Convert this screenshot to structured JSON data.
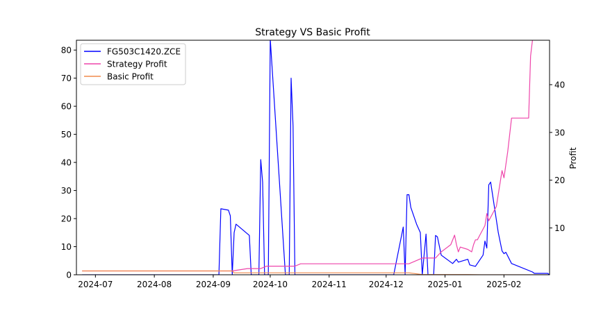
{
  "chart_data": {
    "type": "line",
    "title": "Strategy VS Basic Profit",
    "xlabel": "",
    "ylabel_left": "",
    "ylabel_right": "Profit",
    "x_tick_labels": [
      "2024-07",
      "2024-08",
      "2024-09",
      "2024-10",
      "2024-11",
      "2024-12",
      "2025-01",
      "2025-02"
    ],
    "x_tick_dates": [
      "2024-07-01",
      "2024-08-01",
      "2024-09-01",
      "2024-10-01",
      "2024-11-01",
      "2024-12-01",
      "2025-01-01",
      "2025-02-01"
    ],
    "x_range": [
      "2024-06-21",
      "2025-02-25"
    ],
    "y_left_ticks": [
      0,
      10,
      20,
      30,
      40,
      50,
      60,
      70,
      80
    ],
    "y_left_lim": [
      0,
      83.5
    ],
    "y_right_ticks": [
      10,
      20,
      30,
      40
    ],
    "y_right_lim": [
      0.2,
      49.3
    ],
    "grid": false,
    "legend_position": "top-left",
    "series": [
      {
        "name": "FG503C1420.ZCE",
        "axis": "left",
        "color": "#0000ff",
        "points": [
          [
            "2024-06-24",
            0
          ],
          [
            "2024-09-04",
            0
          ],
          [
            "2024-09-05",
            23.5
          ],
          [
            "2024-09-09",
            23
          ],
          [
            "2024-09-10",
            21
          ],
          [
            "2024-09-11",
            0
          ],
          [
            "2024-09-12",
            15
          ],
          [
            "2024-09-13",
            18
          ],
          [
            "2024-09-20",
            14
          ],
          [
            "2024-09-21",
            0
          ],
          [
            "2024-09-25",
            0
          ],
          [
            "2024-09-26",
            41
          ],
          [
            "2024-09-27",
            33
          ],
          [
            "2024-09-28",
            0
          ],
          [
            "2024-09-30",
            0
          ],
          [
            "2024-10-01",
            84
          ],
          [
            "2024-10-09",
            0
          ],
          [
            "2024-10-11",
            0
          ],
          [
            "2024-10-12",
            70
          ],
          [
            "2024-10-13",
            53
          ],
          [
            "2024-10-14",
            0
          ],
          [
            "2024-12-05",
            0
          ],
          [
            "2024-12-10",
            17
          ],
          [
            "2024-12-11",
            0
          ],
          [
            "2024-12-12",
            28.5
          ],
          [
            "2024-12-13",
            28.5
          ],
          [
            "2024-12-14",
            24
          ],
          [
            "2024-12-17",
            18
          ],
          [
            "2024-12-19",
            15
          ],
          [
            "2024-12-20",
            0
          ],
          [
            "2024-12-22",
            14.5
          ],
          [
            "2024-12-23",
            0
          ],
          [
            "2024-12-26",
            0
          ],
          [
            "2024-12-27",
            14
          ],
          [
            "2024-12-28",
            13.5
          ],
          [
            "2024-12-30",
            7
          ],
          [
            "2025-01-05",
            4
          ],
          [
            "2025-01-07",
            5.5
          ],
          [
            "2025-01-08",
            4.5
          ],
          [
            "2025-01-13",
            5.5
          ],
          [
            "2025-01-14",
            3.5
          ],
          [
            "2025-01-17",
            3
          ],
          [
            "2025-01-21",
            7
          ],
          [
            "2025-01-22",
            12
          ],
          [
            "2025-01-23",
            9.5
          ],
          [
            "2025-01-24",
            32
          ],
          [
            "2025-01-25",
            33
          ],
          [
            "2025-01-29",
            15
          ],
          [
            "2025-01-31",
            8.5
          ],
          [
            "2025-02-01",
            7.5
          ],
          [
            "2025-02-02",
            8
          ],
          [
            "2025-02-05",
            4
          ],
          [
            "2025-02-16",
            1
          ],
          [
            "2025-02-17",
            0.5
          ],
          [
            "2025-02-24",
            0.5
          ],
          [
            "2025-02-25",
            0
          ]
        ]
      },
      {
        "name": "Strategy Profit",
        "axis": "right",
        "color": "#ee44aa",
        "points": [
          [
            "2024-06-24",
            1
          ],
          [
            "2024-09-11",
            1
          ],
          [
            "2024-09-19",
            1.5
          ],
          [
            "2024-09-26",
            1.5
          ],
          [
            "2024-09-29",
            2
          ],
          [
            "2024-10-14",
            2
          ],
          [
            "2024-10-17",
            2.5
          ],
          [
            "2024-12-13",
            2.5
          ],
          [
            "2024-12-20",
            3.7
          ],
          [
            "2024-12-27",
            3.7
          ],
          [
            "2024-12-30",
            5
          ],
          [
            "2025-01-04",
            6.5
          ],
          [
            "2025-01-06",
            8.5
          ],
          [
            "2025-01-07",
            6.5
          ],
          [
            "2025-01-08",
            5
          ],
          [
            "2025-01-09",
            6
          ],
          [
            "2025-01-13",
            5.5
          ],
          [
            "2025-01-15",
            5
          ],
          [
            "2025-01-16",
            6.5
          ],
          [
            "2025-01-17",
            7.5
          ],
          [
            "2025-01-18",
            7.5
          ],
          [
            "2025-01-20",
            9
          ],
          [
            "2025-01-22",
            10.5
          ],
          [
            "2025-01-23",
            13
          ],
          [
            "2025-01-24",
            11.5
          ],
          [
            "2025-01-26",
            13
          ],
          [
            "2025-01-28",
            14.5
          ],
          [
            "2025-01-31",
            22
          ],
          [
            "2025-02-01",
            20.5
          ],
          [
            "2025-02-03",
            26
          ],
          [
            "2025-02-05",
            33
          ],
          [
            "2025-02-13",
            33
          ],
          [
            "2025-02-14",
            33
          ],
          [
            "2025-02-15",
            46
          ],
          [
            "2025-02-16",
            49.3
          ]
        ]
      },
      {
        "name": "Basic Profit",
        "axis": "right",
        "color": "#f08a4b",
        "points": [
          [
            "2024-06-24",
            1
          ],
          [
            "2024-09-11",
            1
          ],
          [
            "2024-09-12",
            0.6
          ],
          [
            "2024-12-13",
            0.6
          ],
          [
            "2024-12-20",
            0.25
          ],
          [
            "2025-01-13",
            0.25
          ],
          [
            "2025-01-20",
            0.2
          ],
          [
            "2025-02-24",
            0.2
          ]
        ]
      }
    ]
  }
}
